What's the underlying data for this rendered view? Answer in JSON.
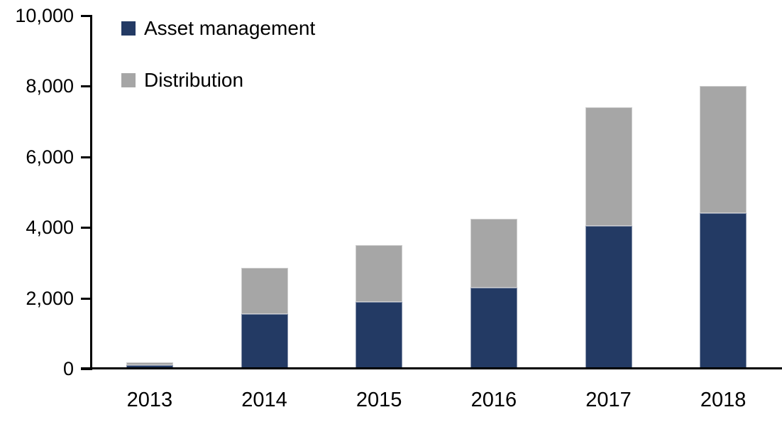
{
  "chart_data": {
    "type": "bar",
    "stacked": true,
    "title": "",
    "xlabel": "",
    "ylabel": "",
    "categories": [
      "2013",
      "2014",
      "2015",
      "2016",
      "2017",
      "2018"
    ],
    "series": [
      {
        "name": "Asset management",
        "color": "#233A64",
        "values": [
          100,
          1550,
          1900,
          2300,
          4050,
          4400
        ]
      },
      {
        "name": "Distribution",
        "color": "#A6A6A6",
        "values": [
          90,
          1300,
          1600,
          1950,
          3350,
          3600
        ]
      }
    ],
    "totals": [
      190,
      2850,
      3500,
      4250,
      7400,
      8000
    ],
    "ylim": [
      0,
      10000
    ],
    "ytick_step": 2000,
    "ytick_labels": [
      "0",
      "2,000",
      "4,000",
      "6,000",
      "8,000",
      "10,000"
    ],
    "grid": false,
    "legend_position": "top-left",
    "axis_color": "#000000",
    "background_color": "#FFFFFF"
  }
}
